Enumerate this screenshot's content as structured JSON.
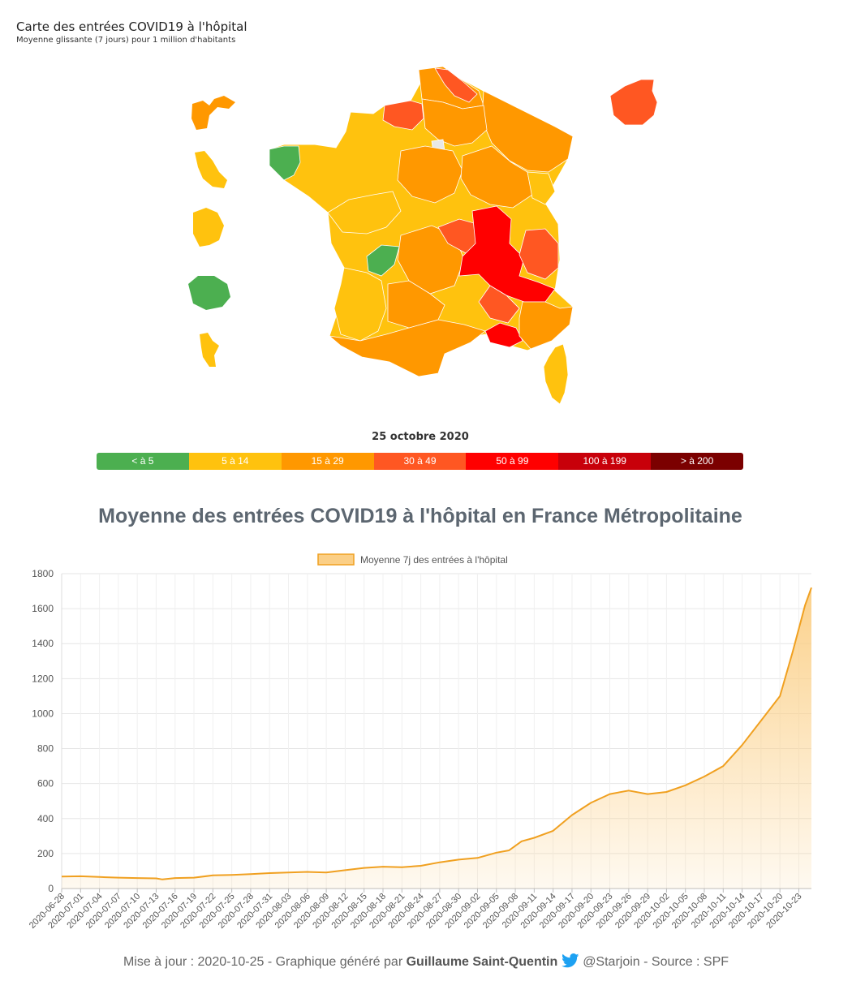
{
  "map": {
    "title": "Carte des entrées COVID19 à l'hôpital",
    "subtitle": "Moyenne glissante (7 jours) pour 1 million d'habitants",
    "date": "25 octobre 2020",
    "legend": [
      {
        "label": "< à 5",
        "color": "#4caf50"
      },
      {
        "label": "5 à 14",
        "color": "#ffc20e"
      },
      {
        "label": "15 à 29",
        "color": "#ff9800"
      },
      {
        "label": "30 à 49",
        "color": "#ff5722"
      },
      {
        "label": "50 à 99",
        "color": "#ff0000"
      },
      {
        "label": "100 à 199",
        "color": "#c8000a"
      },
      {
        "label": "> à 200",
        "color": "#7b0000"
      }
    ]
  },
  "chart": {
    "title": "Moyenne des entrées COVID19 à l'hôpital en France Métropolitaine"
  },
  "chart_data": {
    "type": "area",
    "legend": "Moyenne 7j des entrées à l'hôpital",
    "legend_position": "top-center",
    "grid": true,
    "ylim": [
      0,
      1800
    ],
    "yticks": [
      0,
      200,
      400,
      600,
      800,
      1000,
      1200,
      1400,
      1600,
      1800
    ],
    "line_color": "#f0a020",
    "fill_color": "#fbcf86",
    "x_start": "2020-06-28",
    "x_end": "2020-10-25",
    "tick_labels": [
      "2020-06-28",
      "2020-07-01",
      "2020-07-04",
      "2020-07-07",
      "2020-07-10",
      "2020-07-13",
      "2020-07-16",
      "2020-07-19",
      "2020-07-22",
      "2020-07-25",
      "2020-07-28",
      "2020-07-31",
      "2020-08-03",
      "2020-08-06",
      "2020-08-09",
      "2020-08-12",
      "2020-08-15",
      "2020-08-18",
      "2020-08-21",
      "2020-08-24",
      "2020-08-27",
      "2020-08-30",
      "2020-09-02",
      "2020-09-05",
      "2020-09-08",
      "2020-09-11",
      "2020-09-14",
      "2020-09-17",
      "2020-09-20",
      "2020-09-23",
      "2020-09-26",
      "2020-09-29",
      "2020-10-02",
      "2020-10-05",
      "2020-10-08",
      "2020-10-11",
      "2020-10-14",
      "2020-10-17",
      "2020-10-20",
      "2020-10-23"
    ],
    "points": [
      [
        "2020-06-28",
        68
      ],
      [
        "2020-07-01",
        70
      ],
      [
        "2020-07-04",
        66
      ],
      [
        "2020-07-07",
        62
      ],
      [
        "2020-07-10",
        60
      ],
      [
        "2020-07-13",
        58
      ],
      [
        "2020-07-14",
        52
      ],
      [
        "2020-07-16",
        60
      ],
      [
        "2020-07-19",
        62
      ],
      [
        "2020-07-22",
        75
      ],
      [
        "2020-07-25",
        78
      ],
      [
        "2020-07-28",
        82
      ],
      [
        "2020-07-31",
        88
      ],
      [
        "2020-08-03",
        92
      ],
      [
        "2020-08-06",
        95
      ],
      [
        "2020-08-09",
        92
      ],
      [
        "2020-08-12",
        105
      ],
      [
        "2020-08-15",
        118
      ],
      [
        "2020-08-18",
        125
      ],
      [
        "2020-08-21",
        122
      ],
      [
        "2020-08-24",
        130
      ],
      [
        "2020-08-27",
        150
      ],
      [
        "2020-08-30",
        165
      ],
      [
        "2020-09-02",
        175
      ],
      [
        "2020-09-05",
        205
      ],
      [
        "2020-09-07",
        218
      ],
      [
        "2020-09-09",
        270
      ],
      [
        "2020-09-11",
        290
      ],
      [
        "2020-09-14",
        330
      ],
      [
        "2020-09-17",
        420
      ],
      [
        "2020-09-20",
        490
      ],
      [
        "2020-09-23",
        540
      ],
      [
        "2020-09-26",
        560
      ],
      [
        "2020-09-29",
        540
      ],
      [
        "2020-10-02",
        552
      ],
      [
        "2020-10-05",
        590
      ],
      [
        "2020-10-08",
        640
      ],
      [
        "2020-10-11",
        700
      ],
      [
        "2020-10-14",
        820
      ],
      [
        "2020-10-17",
        960
      ],
      [
        "2020-10-20",
        1100
      ],
      [
        "2020-10-22",
        1350
      ],
      [
        "2020-10-24",
        1620
      ],
      [
        "2020-10-25",
        1720
      ]
    ]
  },
  "footer": {
    "prefix": "Mise à jour : 2020-10-25 - Graphique généré par",
    "author": "Guillaume Saint-Quentin",
    "suffix": "@Starjoin - Source : SPF"
  }
}
